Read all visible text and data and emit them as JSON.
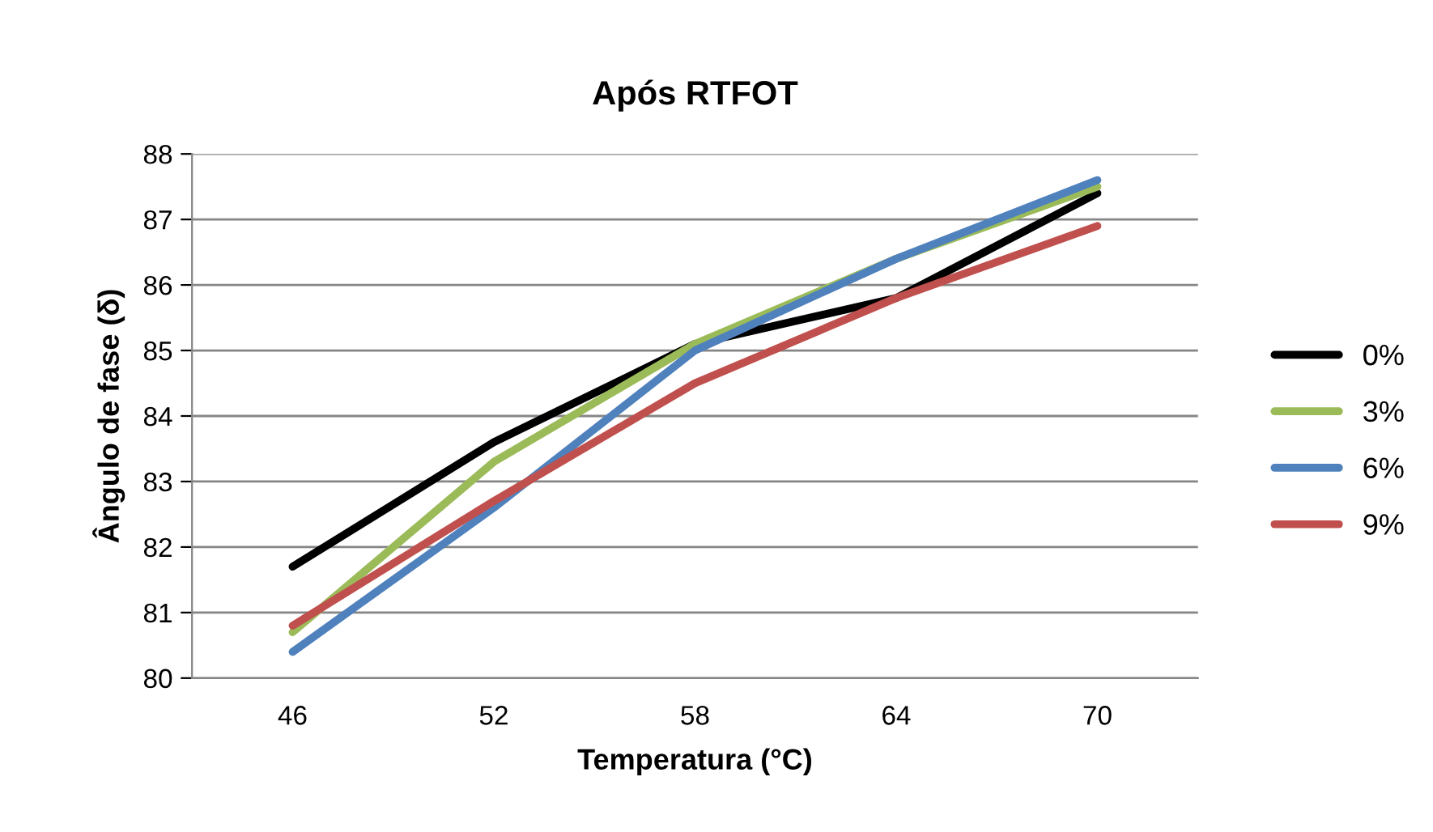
{
  "chart_data": {
    "type": "line",
    "title": "Após RTFOT",
    "xlabel": "Temperatura (°C)",
    "ylabel": "Ângulo de fase (δ)",
    "categories": [
      "46",
      "52",
      "58",
      "64",
      "70"
    ],
    "series": [
      {
        "name": "0%",
        "color": "#000000",
        "values": [
          81.7,
          83.6,
          85.1,
          85.8,
          87.4
        ]
      },
      {
        "name": "3%",
        "color": "#9bbb59",
        "values": [
          80.7,
          83.3,
          85.1,
          86.4,
          87.5
        ]
      },
      {
        "name": "6%",
        "color": "#4f81bd",
        "values": [
          80.4,
          82.6,
          85.0,
          86.4,
          87.6
        ]
      },
      {
        "name": "9%",
        "color": "#c0504d",
        "values": [
          80.8,
          82.7,
          84.5,
          85.8,
          86.9
        ]
      }
    ],
    "ylim": [
      80,
      88
    ],
    "yticks": [
      80,
      81,
      82,
      83,
      84,
      85,
      86,
      87,
      88
    ],
    "grid": "y",
    "legend": "right",
    "marker": "none",
    "line_style": "solid"
  }
}
